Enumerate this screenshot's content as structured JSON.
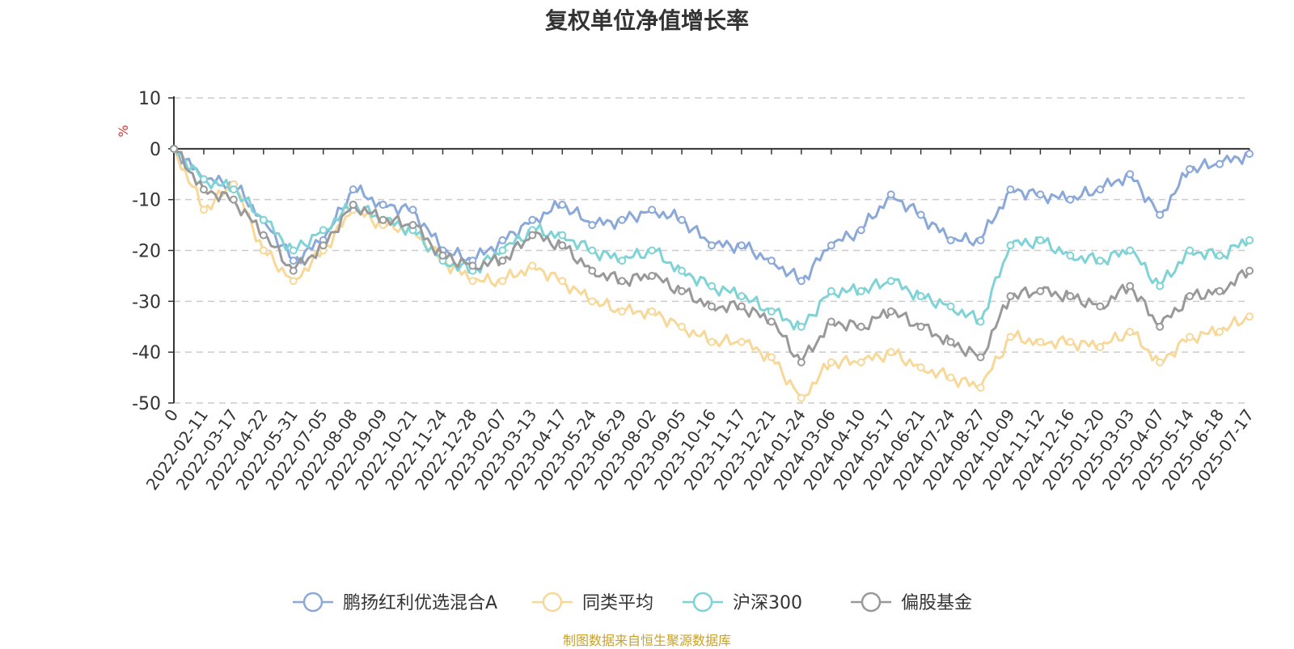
{
  "footer": "制图数据来自恒生聚源数据库",
  "colors": {
    "footer": "#c9a227",
    "grid": "#cccccc",
    "axis": "#333333",
    "unit": "#e03030"
  },
  "chart_data": {
    "type": "line",
    "title": "复权单位净值增长率",
    "ylabel": "%",
    "ylim": [
      -50,
      10
    ],
    "yticks": [
      10,
      0,
      -10,
      -20,
      -30,
      -40,
      -50
    ],
    "grid": true,
    "legend_position": "bottom-center",
    "x_ticks": [
      "0",
      "2022-02-11",
      "2022-03-17",
      "2022-04-22",
      "2022-05-31",
      "2022-07-05",
      "2022-08-08",
      "2022-09-09",
      "2022-10-21",
      "2022-11-24",
      "2022-12-28",
      "2023-02-07",
      "2023-03-13",
      "2023-04-17",
      "2023-05-24",
      "2023-06-29",
      "2023-08-02",
      "2023-09-05",
      "2023-10-16",
      "2023-11-17",
      "2023-12-21",
      "2024-01-24",
      "2024-03-06",
      "2024-04-10",
      "2024-05-17",
      "2024-06-21",
      "2024-07-24",
      "2024-08-27",
      "2024-10-09",
      "2024-11-12",
      "2024-12-16",
      "2025-01-20",
      "2025-03-03",
      "2025-04-07",
      "2025-05-14",
      "2025-06-18",
      "2025-07-17"
    ],
    "series": [
      {
        "name": "鹏扬红利优选混合A",
        "color": "#8aa8d8",
        "values": [
          0,
          -6,
          -7,
          -14,
          -22,
          -18,
          -8,
          -11,
          -12,
          -20,
          -22,
          -18,
          -14,
          -11,
          -15,
          -14,
          -12,
          -14,
          -19,
          -19,
          -22,
          -26,
          -19,
          -16,
          -9,
          -13,
          -18,
          -18,
          -8,
          -9,
          -10,
          -8,
          -5,
          -13,
          -4,
          -3,
          -1
        ]
      },
      {
        "name": "同类平均",
        "color": "#f7d899",
        "values": [
          0,
          -12,
          -7,
          -20,
          -26,
          -20,
          -12,
          -15,
          -16,
          -22,
          -26,
          -26,
          -23,
          -26,
          -30,
          -32,
          -32,
          -35,
          -38,
          -38,
          -41,
          -49,
          -42,
          -42,
          -40,
          -43,
          -45,
          -47,
          -37,
          -38,
          -38,
          -39,
          -36,
          -42,
          -37,
          -36,
          -33
        ]
      },
      {
        "name": "沪深300",
        "color": "#7fd3d6",
        "values": [
          0,
          -6,
          -8,
          -14,
          -20,
          -16,
          -11,
          -14,
          -16,
          -22,
          -24,
          -20,
          -16,
          -17,
          -20,
          -22,
          -20,
          -24,
          -27,
          -29,
          -32,
          -35,
          -28,
          -28,
          -26,
          -29,
          -31,
          -34,
          -19,
          -18,
          -21,
          -22,
          -20,
          -27,
          -20,
          -21,
          -18
        ]
      },
      {
        "name": "偏股基金",
        "color": "#999999",
        "values": [
          0,
          -8,
          -10,
          -17,
          -24,
          -19,
          -11,
          -14,
          -15,
          -21,
          -23,
          -22,
          -17,
          -19,
          -24,
          -26,
          -25,
          -28,
          -31,
          -31,
          -34,
          -42,
          -34,
          -35,
          -32,
          -35,
          -38,
          -41,
          -29,
          -28,
          -29,
          -31,
          -27,
          -35,
          -29,
          -28,
          -24
        ]
      }
    ]
  }
}
